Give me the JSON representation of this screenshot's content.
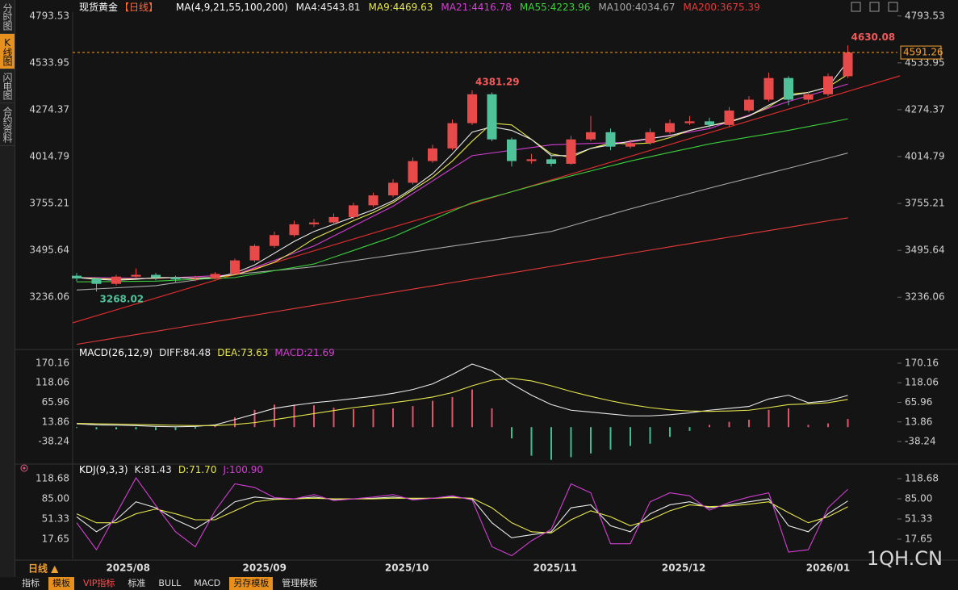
{
  "ui": {
    "sidebar": [
      "分时图",
      "K线图",
      "闪电图",
      "合约资料"
    ],
    "period": "日线 ▲",
    "watermark": "1QH.CN",
    "toolbar": [
      "指标",
      "模板",
      "VIP指标",
      "标准",
      "BULL",
      "MACD",
      "另存模板",
      "管理模板"
    ]
  },
  "chart_data": [
    {
      "type": "candlestick",
      "title": "现货黄金",
      "subtitle": "【日线】",
      "ma_label": "MA(4,9,21,55,100,200)",
      "up_color": "#e84a4a",
      "down_color": "#4fc29a",
      "open": [
        3355,
        3340,
        3310,
        3350,
        3360,
        3345,
        3335,
        3340,
        3365,
        3440,
        3520,
        3580,
        3640,
        3650,
        3680,
        3745,
        3800,
        3870,
        3990,
        4060,
        4200,
        4360,
        4110,
        3990,
        4000,
        3975,
        4110,
        4150,
        4070,
        4090,
        4150,
        4200,
        4210,
        4190,
        4270,
        4330,
        4450,
        4330,
        4360,
        4460
      ],
      "high": [
        3370,
        3345,
        3360,
        3395,
        3370,
        3355,
        3355,
        3375,
        3450,
        3530,
        3600,
        3660,
        3670,
        3700,
        3760,
        3815,
        3890,
        4010,
        4080,
        4220,
        4381.29,
        4370,
        4120,
        4030,
        4020,
        4130,
        4240,
        4170,
        4110,
        4170,
        4220,
        4240,
        4230,
        4290,
        4350,
        4480,
        4460,
        4375,
        4475,
        4630.08
      ],
      "low": [
        3325,
        3268.02,
        3300,
        3345,
        3330,
        3320,
        3325,
        3335,
        3360,
        3430,
        3510,
        3570,
        3625,
        3640,
        3670,
        3735,
        3790,
        3860,
        3980,
        4050,
        4190,
        4100,
        3960,
        3975,
        3960,
        3970,
        4100,
        4050,
        4060,
        4080,
        4140,
        4190,
        4175,
        4180,
        4260,
        4320,
        4300,
        4310,
        4350,
        4450
      ],
      "close": [
        3340,
        3310,
        3350,
        3360,
        3345,
        3335,
        3340,
        3365,
        3440,
        3520,
        3580,
        3640,
        3650,
        3680,
        3745,
        3800,
        3870,
        3990,
        4060,
        4200,
        4360,
        4110,
        3990,
        4000,
        3975,
        4110,
        4150,
        4070,
        4090,
        4150,
        4200,
        4210,
        4190,
        4270,
        4330,
        4450,
        4330,
        4360,
        4460,
        4591.26
      ],
      "series": [
        {
          "name": "MA4:4543.81",
          "color": "#e8e8e8",
          "values": [
            3345,
            3335,
            3330,
            3335,
            3345,
            3345,
            3340,
            3345,
            3370,
            3415,
            3480,
            3545,
            3600,
            3640,
            3680,
            3720,
            3770,
            3840,
            3920,
            4030,
            4150,
            4180,
            4160,
            4110,
            4020,
            4020,
            4060,
            4080,
            4100,
            4115,
            4130,
            4160,
            4185,
            4205,
            4240,
            4300,
            4350,
            4370,
            4400,
            4543.81
          ]
        },
        {
          "name": "MA9:4469.63",
          "color": "#e6e64d",
          "values": [
            3345,
            3340,
            3335,
            3338,
            3342,
            3345,
            3342,
            3345,
            3360,
            3390,
            3430,
            3490,
            3560,
            3610,
            3660,
            3705,
            3760,
            3830,
            3900,
            3990,
            4100,
            4200,
            4190,
            4110,
            4030,
            4010,
            4060,
            4090,
            4085,
            4090,
            4120,
            4160,
            4185,
            4210,
            4240,
            4290,
            4360,
            4370,
            4400,
            4469.63
          ]
        },
        {
          "name": "MA21:4416.78",
          "color": "#d23fd2",
          "values": [
            3345,
            3344,
            3343,
            3341,
            3340,
            3345,
            3350,
            3355,
            3360,
            3400,
            3440,
            3480,
            3520,
            3575,
            3630,
            3685,
            3740,
            3810,
            3880,
            3950,
            4020,
            4035,
            4050,
            4065,
            4080,
            4084,
            4088,
            4091,
            4095,
            4114,
            4133,
            4151,
            4170,
            4208,
            4245,
            4283,
            4320,
            4352,
            4384,
            4416.78
          ]
        },
        {
          "name": "MA55:4223.96",
          "color": "#3ccf3c",
          "values": [
            3321,
            3322,
            3323,
            3324,
            3325,
            3330,
            3335,
            3340,
            3345,
            3364,
            3383,
            3401,
            3420,
            3458,
            3495,
            3533,
            3570,
            3618,
            3665,
            3713,
            3760,
            3790,
            3820,
            3850,
            3880,
            3908,
            3935,
            3963,
            3990,
            4014,
            4038,
            4061,
            4085,
            4104,
            4123,
            4141,
            4160,
            4181,
            4202,
            4223.96
          ]
        },
        {
          "name": "MA100:4034.67",
          "color": "#a8a8a8",
          "values": [
            3276,
            3282,
            3288,
            3294,
            3300,
            3316,
            3331,
            3347,
            3362,
            3373,
            3384,
            3394,
            3405,
            3421,
            3438,
            3454,
            3470,
            3486,
            3503,
            3519,
            3535,
            3551,
            3568,
            3584,
            3600,
            3631,
            3663,
            3694,
            3725,
            3754,
            3783,
            3811,
            3840,
            3868,
            3895,
            3923,
            3950,
            3978,
            4006,
            4034.67
          ]
        },
        {
          "name": "MA200:3675.39",
          "color": "#e63a3a",
          "values": [
            2975,
            2993,
            3011,
            3029,
            3047,
            3065,
            3083,
            3101,
            3119,
            3137,
            3155,
            3173,
            3191,
            3209,
            3227,
            3245,
            3263,
            3281,
            3299,
            3317,
            3335,
            3353,
            3371,
            3389,
            3407,
            3425,
            3443,
            3461,
            3479,
            3497,
            3515,
            3533,
            3551,
            3569,
            3587,
            3605,
            3623,
            3641,
            3659,
            3675.39
          ]
        }
      ],
      "annotations": [
        {
          "field": "high",
          "index": 39,
          "color": "#f05a5a"
        },
        {
          "field": "high",
          "index": 20,
          "color": "#f05a5a"
        },
        {
          "field": "low",
          "index": 1,
          "color": "#4fc29a"
        }
      ],
      "last_price_color": "#f0a030",
      "ylim": [
        2960,
        4815
      ],
      "yticks": [
        3236.06,
        3495.64,
        3755.21,
        4014.79,
        4274.37,
        4533.95,
        4793.53
      ],
      "xticks": [
        {
          "value": 2.6,
          "label": "2025/08"
        },
        {
          "value": 9.5,
          "label": "2025/09"
        },
        {
          "value": 16.7,
          "label": "2025/10"
        },
        {
          "value": 24.2,
          "label": "2025/11"
        },
        {
          "value": 30.7,
          "label": "2025/12"
        },
        {
          "value": 38,
          "label": "2026/01"
        }
      ]
    },
    {
      "type": "macd",
      "title": "MACD(26,12,9)",
      "series": [
        {
          "name": "DIFF:84.48",
          "color": "#e8e8e8",
          "style": "line",
          "values": [
            9,
            6,
            5,
            4,
            2,
            1,
            2,
            6,
            20,
            35,
            50,
            58,
            65,
            70,
            76,
            82,
            90,
            100,
            115,
            140,
            168,
            150,
            115,
            85,
            60,
            45,
            40,
            35,
            30,
            30,
            33,
            38,
            45,
            50,
            55,
            75,
            85,
            65,
            70,
            84.48
          ]
        },
        {
          "name": "DEA:73.63",
          "color": "#e6e64d",
          "style": "line",
          "values": [
            10,
            9,
            8,
            7,
            6,
            5,
            4,
            4,
            7,
            12,
            20,
            28,
            36,
            44,
            52,
            58,
            65,
            72,
            80,
            92,
            110,
            125,
            130,
            123,
            110,
            95,
            82,
            70,
            60,
            52,
            46,
            43,
            42,
            43,
            45,
            52,
            60,
            62,
            65,
            73.63
          ]
        },
        {
          "name": "MACD:21.69",
          "color": "#d23fd2",
          "style": "bar",
          "up_color": "#e0556a",
          "down_color": "#3fbf8f",
          "values": [
            -2,
            -6,
            -6,
            -6,
            -8,
            -8,
            -4,
            4,
            26,
            46,
            60,
            60,
            58,
            52,
            48,
            48,
            50,
            56,
            70,
            80,
            100,
            50,
            -30,
            -76,
            -87,
            -80,
            -70,
            -60,
            -50,
            -44,
            -26,
            -10,
            6,
            14,
            20,
            46,
            50,
            6,
            10,
            21.69
          ]
        }
      ],
      "ylim": [
        -87.6,
        191.6
      ],
      "yticks": [
        -38.24,
        13.86,
        65.96,
        118.06,
        170.16
      ]
    },
    {
      "type": "kdj",
      "title": "KDJ(9,3,3)",
      "series": [
        {
          "name": "K:81.43",
          "color": "#e8e8e8",
          "values": [
            55,
            30,
            50,
            80,
            70,
            50,
            35,
            55,
            80,
            88,
            85,
            85,
            88,
            84,
            85,
            86,
            88,
            85,
            86,
            88,
            85,
            45,
            20,
            25,
            30,
            70,
            75,
            40,
            30,
            60,
            75,
            80,
            70,
            75,
            80,
            85,
            40,
            30,
            60,
            81.43
          ]
        },
        {
          "name": "D:71.70",
          "color": "#e6e64d",
          "values": [
            60,
            45,
            45,
            60,
            68,
            60,
            50,
            50,
            65,
            80,
            84,
            85,
            86,
            85,
            85,
            85,
            86,
            86,
            86,
            87,
            86,
            70,
            45,
            30,
            28,
            50,
            65,
            55,
            40,
            50,
            65,
            75,
            72,
            73,
            76,
            80,
            62,
            45,
            55,
            71.7
          ]
        },
        {
          "name": "J:100.90",
          "color": "#d23fd2",
          "values": [
            45,
            0,
            60,
            120,
            74,
            30,
            5,
            65,
            110,
            104,
            87,
            85,
            92,
            82,
            85,
            88,
            92,
            83,
            86,
            90,
            83,
            5,
            -10,
            15,
            34,
            110,
            95,
            10,
            10,
            80,
            95,
            90,
            66,
            79,
            88,
            95,
            -4,
            0,
            70,
            100.9
          ]
        }
      ],
      "ylim": [
        -14.7,
        129.5
      ],
      "yticks": [
        17.65,
        51.33,
        {
          "value": 85,
          "label": "85.00"
        },
        118.68
      ]
    }
  ]
}
